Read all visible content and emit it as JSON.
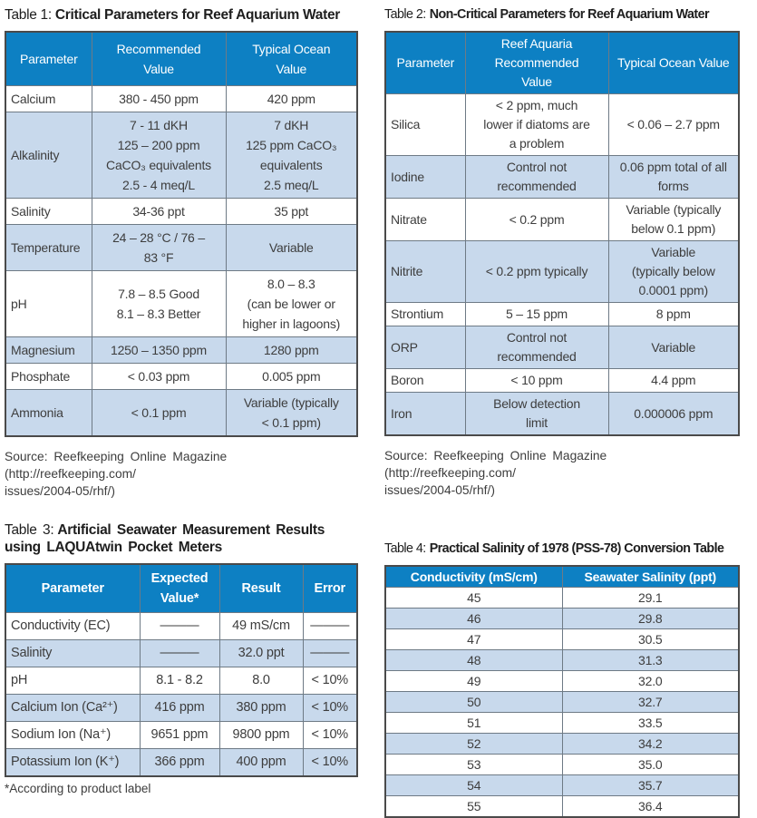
{
  "colors": {
    "header_bg": "#0d80c3",
    "header_text": "#ffffff",
    "row_alt_bg": "#c8d9ec",
    "body_text": "#3d3d3d",
    "border_outer": "#4a4a4a",
    "border_inner": "#6e7a85"
  },
  "table1": {
    "title_prefix": "Table 1:",
    "title_bold": "Critical Parameters for Reef Aquarium Water",
    "headers": [
      "Parameter",
      "Recommended\nValue",
      "Typical Ocean\nValue"
    ],
    "rows": [
      {
        "param": "Calcium",
        "recommended": "380 - 450 ppm",
        "ocean": "420 ppm"
      },
      {
        "param": "Alkalinity",
        "recommended": "7 - 11 dKH\n125 – 200 ppm\nCaCO₃ equivalents\n2.5 - 4 meq/L",
        "ocean": "7 dKH\n125 ppm CaCO₃\nequivalents\n2.5 meq/L"
      },
      {
        "param": "Salinity",
        "recommended": "34-36 ppt",
        "ocean": "35 ppt"
      },
      {
        "param": "Temperature",
        "recommended": "24 – 28 °C  / 76 –\n83 °F",
        "ocean": "Variable"
      },
      {
        "param": "pH",
        "recommended": "7.8 – 8.5 Good\n8.1 – 8.3 Better",
        "ocean": "8.0 – 8.3\n(can be lower or\nhigher in lagoons)"
      },
      {
        "param": "Magnesium",
        "recommended": "1250 – 1350 ppm",
        "ocean": "1280 ppm"
      },
      {
        "param": "Phosphate",
        "recommended": "< 0.03 ppm",
        "ocean": "0.005 ppm"
      },
      {
        "param": "Ammonia",
        "recommended": "< 0.1 ppm",
        "ocean": "Variable (typically\n< 0.1 ppm)"
      }
    ],
    "source": "Source: Reefkeeping Online Magazine (http://reefkeeping.com/\nissues/2004-05/rhf/)"
  },
  "table2": {
    "title_prefix": "Table 2:",
    "title_bold": "Non-Critical Parameters for Reef Aquarium Water",
    "headers": [
      "Parameter",
      "Reef Aquaria\nRecommended\nValue",
      "Typical Ocean Value"
    ],
    "rows": [
      {
        "param": "Silica",
        "recommended": "< 2 ppm, much\nlower if diatoms are\na problem",
        "ocean": "< 0.06 – 2.7 ppm"
      },
      {
        "param": "Iodine",
        "recommended": "Control not\nrecommended",
        "ocean": "0.06 ppm total of all\nforms"
      },
      {
        "param": "Nitrate",
        "recommended": "< 0.2 ppm",
        "ocean": "Variable (typically\nbelow 0.1 ppm)"
      },
      {
        "param": "Nitrite",
        "recommended": "< 0.2 ppm typically",
        "ocean": "Variable\n(typically below\n0.0001 ppm)"
      },
      {
        "param": "Strontium",
        "recommended": "5 – 15 ppm",
        "ocean": "8 ppm"
      },
      {
        "param": "ORP",
        "recommended": "Control not\nrecommended",
        "ocean": "Variable"
      },
      {
        "param": "Boron",
        "recommended": "< 10 ppm",
        "ocean": "4.4 ppm"
      },
      {
        "param": "Iron",
        "recommended": "Below detection\nlimit",
        "ocean": "0.000006 ppm"
      }
    ],
    "source": "Source: Reefkeeping Online Magazine (http://reefkeeping.com/\nissues/2004-05/rhf/)"
  },
  "table3": {
    "title_prefix": "Table 3:",
    "title_bold": "Artificial Seawater Measurement Results using LAQUAtwin Pocket Meters",
    "headers": [
      "Parameter",
      "Expected\nValue*",
      "Result",
      "Error"
    ],
    "rows": [
      {
        "param": "Conductivity (EC)",
        "expected": "———",
        "result": "49 mS/cm",
        "error": "———"
      },
      {
        "param": "Salinity",
        "expected": "———",
        "result": "32.0 ppt",
        "error": "———"
      },
      {
        "param": "pH",
        "expected": "8.1 - 8.2",
        "result": "8.0",
        "error": "< 10%"
      },
      {
        "param": "Calcium Ion (Ca²⁺)",
        "expected": "416 ppm",
        "result": "380 ppm",
        "error": "< 10%"
      },
      {
        "param": "Sodium Ion (Na⁺)",
        "expected": "9651 ppm",
        "result": "9800 ppm",
        "error": "< 10%"
      },
      {
        "param": "Potassium Ion (K⁺)",
        "expected": "366 ppm",
        "result": "400 ppm",
        "error": "< 10%"
      }
    ],
    "footnote": "*According to product label"
  },
  "table4": {
    "title_prefix": "Table 4:",
    "title_bold": "Practical Salinity of 1978 (PSS-78) Conversion Table",
    "headers": [
      "Conductivity (mS/cm)",
      "Seawater Salinity (ppt)"
    ],
    "rows": [
      {
        "conductivity": "45",
        "salinity": "29.1"
      },
      {
        "conductivity": "46",
        "salinity": "29.8"
      },
      {
        "conductivity": "47",
        "salinity": "30.5"
      },
      {
        "conductivity": "48",
        "salinity": "31.3"
      },
      {
        "conductivity": "49",
        "salinity": "32.0"
      },
      {
        "conductivity": "50",
        "salinity": "32.7"
      },
      {
        "conductivity": "51",
        "salinity": "33.5"
      },
      {
        "conductivity": "52",
        "salinity": "34.2"
      },
      {
        "conductivity": "53",
        "salinity": "35.0"
      },
      {
        "conductivity": "54",
        "salinity": "35.7"
      },
      {
        "conductivity": "55",
        "salinity": "36.4"
      }
    ]
  }
}
